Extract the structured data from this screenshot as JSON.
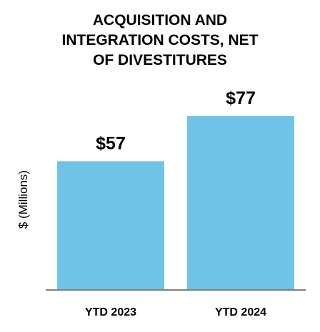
{
  "chart_data": {
    "type": "bar",
    "title_lines": [
      "ACQUISITION AND",
      "INTEGRATION COSTS, NET",
      "OF DIVESTITURES"
    ],
    "ylabel": "$ (Millions)",
    "xlabel": "",
    "categories": [
      "YTD 2023",
      "YTD 2024"
    ],
    "values": [
      57,
      77
    ],
    "value_labels": [
      "$57",
      "$77"
    ],
    "ylim": [
      0,
      77
    ],
    "grid": false,
    "legend": "none",
    "bar_color": "#6EC3E7",
    "axis_color": "#808080"
  }
}
